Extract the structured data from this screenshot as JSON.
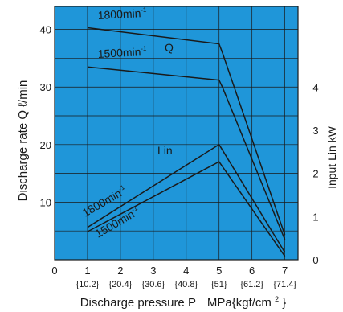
{
  "chart_data": {
    "type": "line",
    "xlabel_main": "Discharge pressure P",
    "xlabel_unit": "MPa{kgf/cm",
    "xlabel_unit_sup": "2",
    "xlabel_unit_close": "}",
    "ylabel_left": "Discharge rate Q ℓ/min",
    "ylabel_right": "Input  Lin kW",
    "xlim": [
      0,
      7.4
    ],
    "ylim_left": [
      0,
      44
    ],
    "ylim_right": [
      0,
      5.868
    ],
    "x_ticks": [
      "0",
      "1",
      "2",
      "3",
      "4",
      "5",
      "6",
      "7"
    ],
    "x_ticks_kgf": [
      "{10.2}",
      "{20.4}",
      "{30.6}",
      "{40.8}",
      "{51}",
      "{61.2}",
      "{71.4}"
    ],
    "y_left_ticks": [
      "10",
      "20",
      "30",
      "40"
    ],
    "y_right_ticks": [
      "0",
      "1",
      "2",
      "3",
      "4"
    ],
    "grid": true,
    "background": "#1f96d9",
    "line_color": "#1a1a1a",
    "series_q_label": "Q",
    "series_lin_label": "Lin",
    "series": [
      {
        "name": "1800min-1",
        "axis": "left",
        "x": [
          1,
          5,
          5.1,
          7
        ],
        "y": [
          40.3,
          37.5,
          36,
          4.3
        ]
      },
      {
        "name": "1500min-1",
        "axis": "left",
        "x": [
          1,
          5,
          5.1,
          7
        ],
        "y": [
          33.5,
          31.2,
          30,
          3.5
        ]
      },
      {
        "name": "1800min-1",
        "axis": "right",
        "x": [
          1,
          5,
          7
        ],
        "y": [
          0.75,
          2.67,
          0.17
        ]
      },
      {
        "name": "1500min-1",
        "axis": "right",
        "x": [
          1,
          5,
          7
        ],
        "y": [
          0.65,
          2.27,
          0.08
        ]
      }
    ],
    "annotations": [
      {
        "series": 0,
        "text": "1800min",
        "sup": "-1"
      },
      {
        "series": 1,
        "text": "1500min",
        "sup": "-1"
      },
      {
        "series": 2,
        "text": "1800min",
        "sup": "-1"
      },
      {
        "series": 3,
        "text": "1500min",
        "sup": "-1"
      }
    ]
  }
}
